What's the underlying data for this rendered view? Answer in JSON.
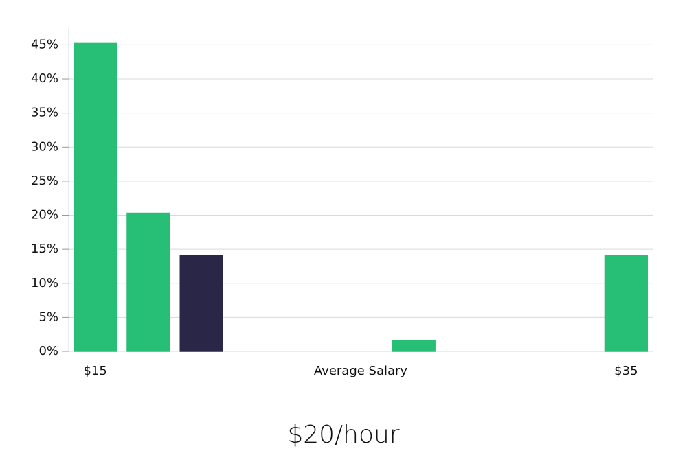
{
  "chart_data": {
    "type": "bar",
    "categories": [
      "$15",
      null,
      null,
      null,
      null,
      null,
      null,
      null,
      null,
      null,
      "$35"
    ],
    "values": [
      45.3,
      20.3,
      14.1,
      0,
      0,
      0,
      1.6,
      0,
      0,
      0,
      14.1
    ],
    "colors": [
      "#27be76",
      "#27be76",
      "#2a2647",
      "#27be76",
      "#27be76",
      "#27be76",
      "#27be76",
      "#27be76",
      "#27be76",
      "#27be76",
      "#27be76"
    ],
    "x_label": "Average Salary",
    "annotation": "$20/hour",
    "ylim": [
      0,
      47.5
    ],
    "yticks": [
      {
        "value": 0,
        "label": "0%"
      },
      {
        "value": 5,
        "label": "5%"
      },
      {
        "value": 10,
        "label": "10%"
      },
      {
        "value": 15,
        "label": "15%"
      },
      {
        "value": 20,
        "label": "20%"
      },
      {
        "value": 25,
        "label": "25%"
      },
      {
        "value": 30,
        "label": "30%"
      },
      {
        "value": 35,
        "label": "35%"
      },
      {
        "value": 40,
        "label": "40%"
      },
      {
        "value": 45,
        "label": "45%"
      }
    ],
    "grid": true
  }
}
